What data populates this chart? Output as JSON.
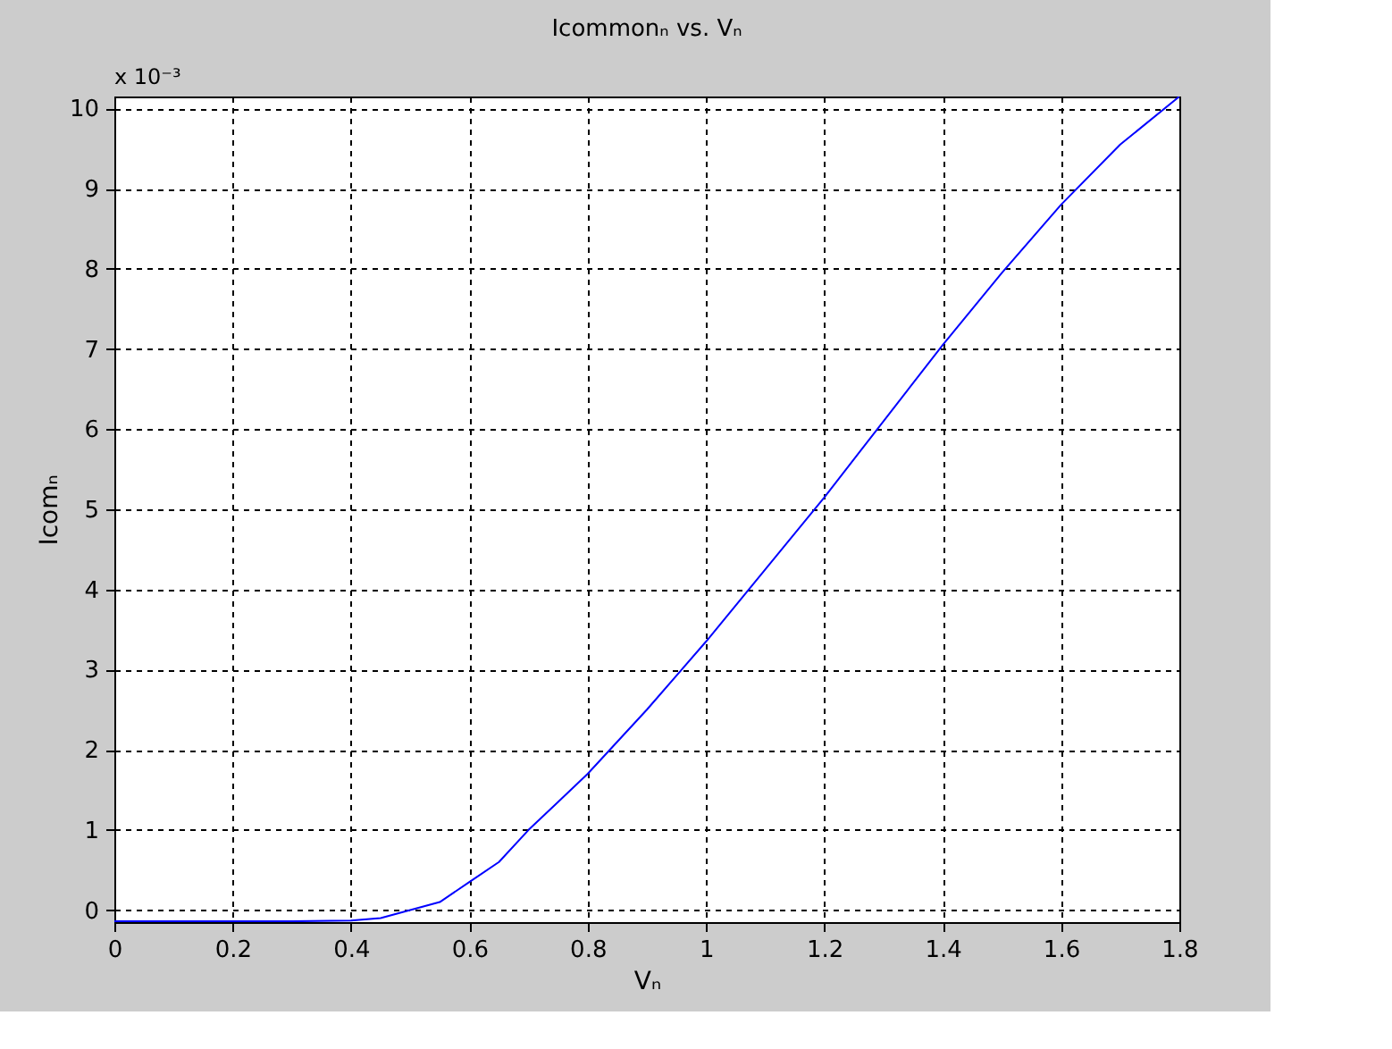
{
  "chart_data": {
    "type": "line",
    "title": "Icommonₙ vs. Vₙ",
    "xlabel": "Vₙ",
    "ylabel": "Icomₙ",
    "annotations": [
      "x 10⁻³"
    ],
    "x": [
      0,
      0.1,
      0.2,
      0.3,
      0.4,
      0.45,
      0.5,
      0.55,
      0.6,
      0.65,
      0.7,
      0.75,
      0.8,
      0.9,
      1.0,
      1.1,
      1.2,
      1.3,
      1.4,
      1.5,
      1.6,
      1.7,
      1.8
    ],
    "series": [
      {
        "color": "#0000ff",
        "values": [
          -0.14,
          -0.14,
          -0.14,
          -0.14,
          -0.13,
          -0.1,
          0.0,
          0.1,
          0.35,
          0.6,
          1.0,
          1.35,
          1.7,
          2.5,
          3.35,
          4.25,
          5.15,
          6.1,
          7.05,
          7.95,
          8.8,
          9.55,
          10.15
        ]
      }
    ],
    "xlim": [
      0,
      1.8
    ],
    "xticks": [
      0,
      0.2,
      0.4,
      0.6,
      0.8,
      1,
      1.2,
      1.4,
      1.6,
      1.8
    ],
    "ylim": [
      -0.15,
      10.15
    ],
    "yticks": [
      0,
      1,
      2,
      3,
      4,
      5,
      6,
      7,
      8,
      9,
      10
    ],
    "grid": true,
    "line_style": "solid",
    "marker": "none"
  }
}
